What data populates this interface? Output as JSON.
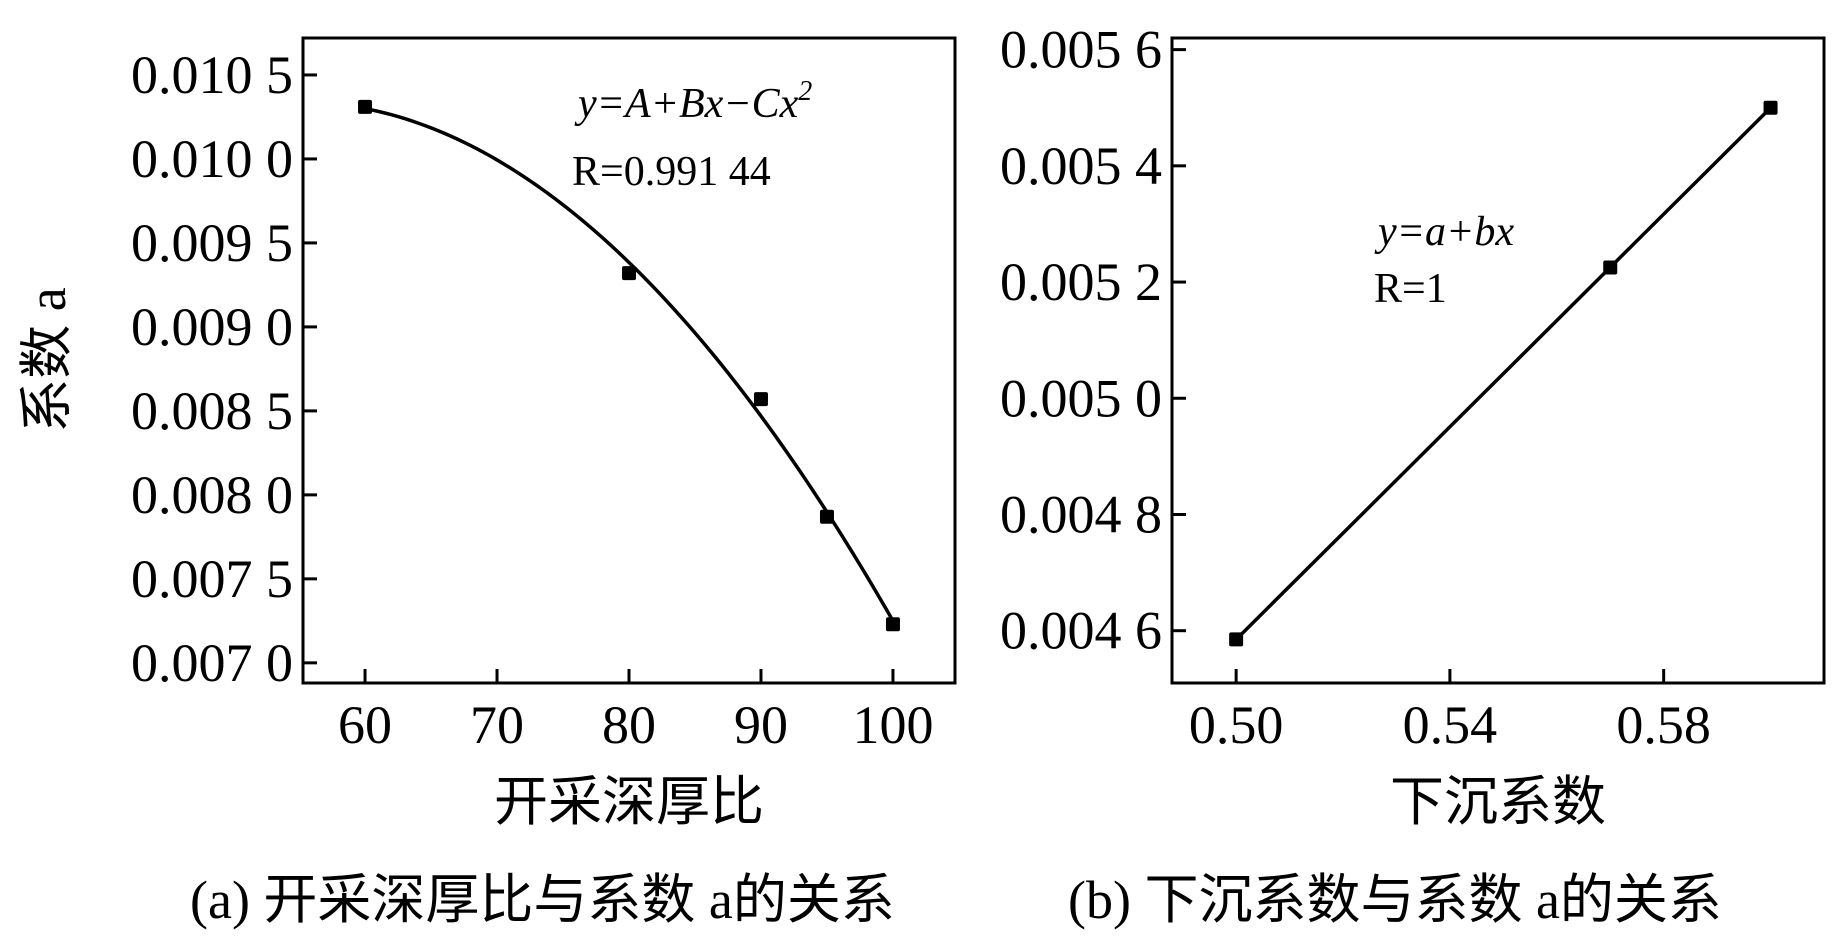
{
  "chart_data": [
    {
      "type": "scatter",
      "fit": "quadratic",
      "caption": "(a) 开采深厚比与系数 a的关系",
      "xlabel": "开采深厚比",
      "ylabel": "系数 a",
      "xticks": [
        "60",
        "70",
        "80",
        "90",
        "100"
      ],
      "yticks": [
        "0.007 0",
        "0.007 5",
        "0.008 0",
        "0.008 5",
        "0.009 0",
        "0.009 5",
        "0.010 0",
        "0.010 5"
      ],
      "xlim": [
        55.3,
        104.7
      ],
      "ylim": [
        0.00688,
        0.01072
      ],
      "x": [
        60,
        80,
        90,
        95,
        100
      ],
      "y": [
        0.01031,
        0.00932,
        0.00857,
        0.00787,
        0.00723
      ],
      "annotation": {
        "equation": "y=A+Bx−Cx",
        "equation_sup": "2",
        "r_value": "R=0.991 44"
      }
    },
    {
      "type": "scatter",
      "fit": "linear",
      "caption": "(b) 下沉系数与系数 a的关系",
      "xlabel": "下沉系数",
      "ylabel": "",
      "xticks": [
        "0.50",
        "0.54",
        "0.58"
      ],
      "yticks": [
        "0.004 6",
        "0.004 8",
        "0.005 0",
        "0.005 2",
        "0.005 4",
        "0.005 6"
      ],
      "xlim": [
        0.488,
        0.61
      ],
      "ylim": [
        0.00451,
        0.00562
      ],
      "x": [
        0.5,
        0.57,
        0.6
      ],
      "y": [
        0.004585,
        0.005225,
        0.0055
      ],
      "annotation": {
        "equation": "y=a+bx",
        "r_value": "R=1"
      }
    }
  ]
}
